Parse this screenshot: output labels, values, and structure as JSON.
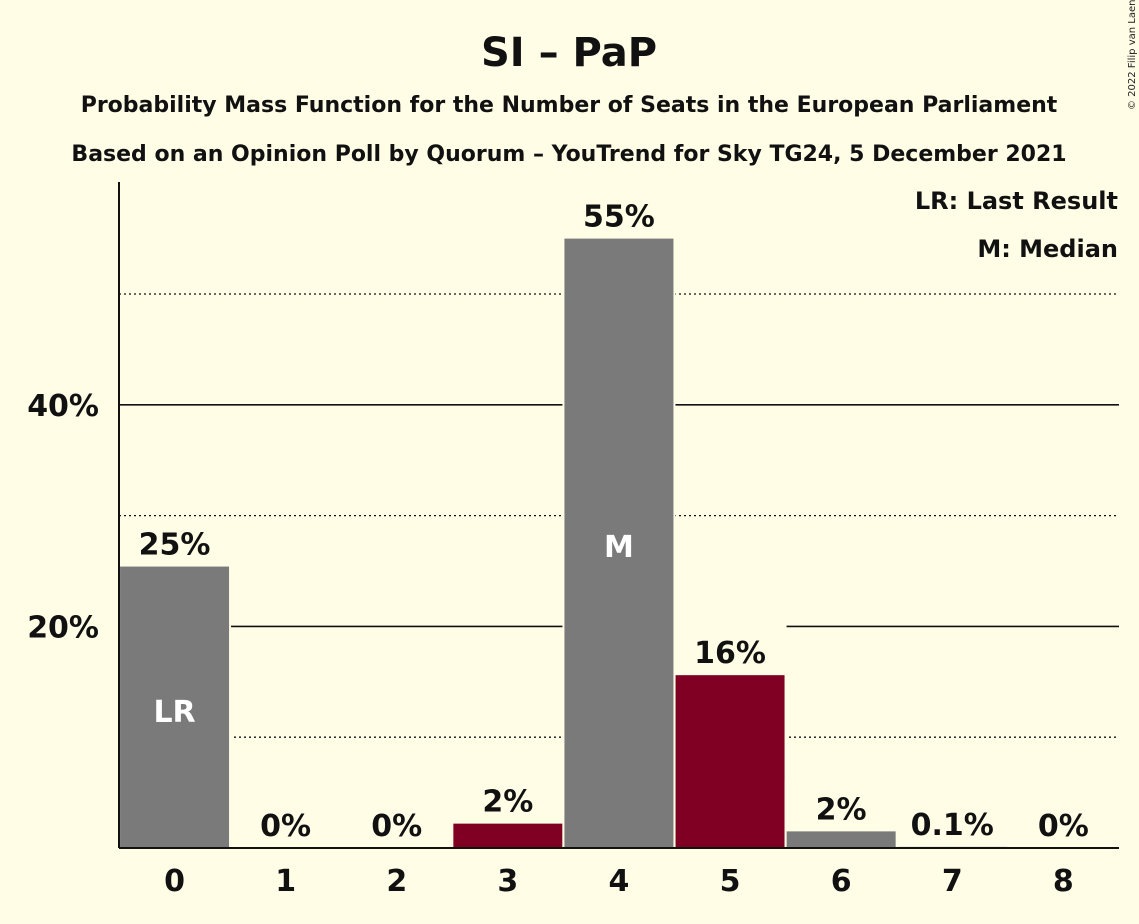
{
  "title": "SI – PaP",
  "subtitle1": "Probability Mass Function for the Number of Seats in the European Parliament",
  "subtitle2": "Based on an Opinion Poll by Quorum – YouTrend for Sky TG24, 5 December 2021",
  "copyright": "© 2022 Filip van Laenen",
  "legend": [
    "LR: Last Result",
    "M: Median"
  ],
  "colors": {
    "background": "#fffde6",
    "grey": "#7a7a7a",
    "party": "#800024",
    "axis": "#111111"
  },
  "chart_data": {
    "type": "bar",
    "categories": [
      "0",
      "1",
      "2",
      "3",
      "4",
      "5",
      "6",
      "7",
      "8"
    ],
    "values": [
      25.4,
      0,
      0,
      2.2,
      55,
      15.6,
      1.5,
      0.1,
      0
    ],
    "data_labels": [
      "25%",
      "0%",
      "0%",
      "2%",
      "55%",
      "16%",
      "2%",
      "0.1%",
      "0%"
    ],
    "bar_colors": [
      "#7a7a7a",
      "#7a7a7a",
      "#7a7a7a",
      "#800024",
      "#7a7a7a",
      "#800024",
      "#7a7a7a",
      "#7a7a7a",
      "#7a7a7a"
    ],
    "bar_markers": {
      "0": "LR",
      "4": "M"
    },
    "ylim": [
      0,
      60
    ],
    "yticks": [
      20,
      40
    ],
    "ytick_labels": [
      "20%",
      "40%"
    ],
    "minor_gridlines": [
      10,
      30,
      50
    ],
    "grid": true,
    "legend_position": "top-right"
  }
}
